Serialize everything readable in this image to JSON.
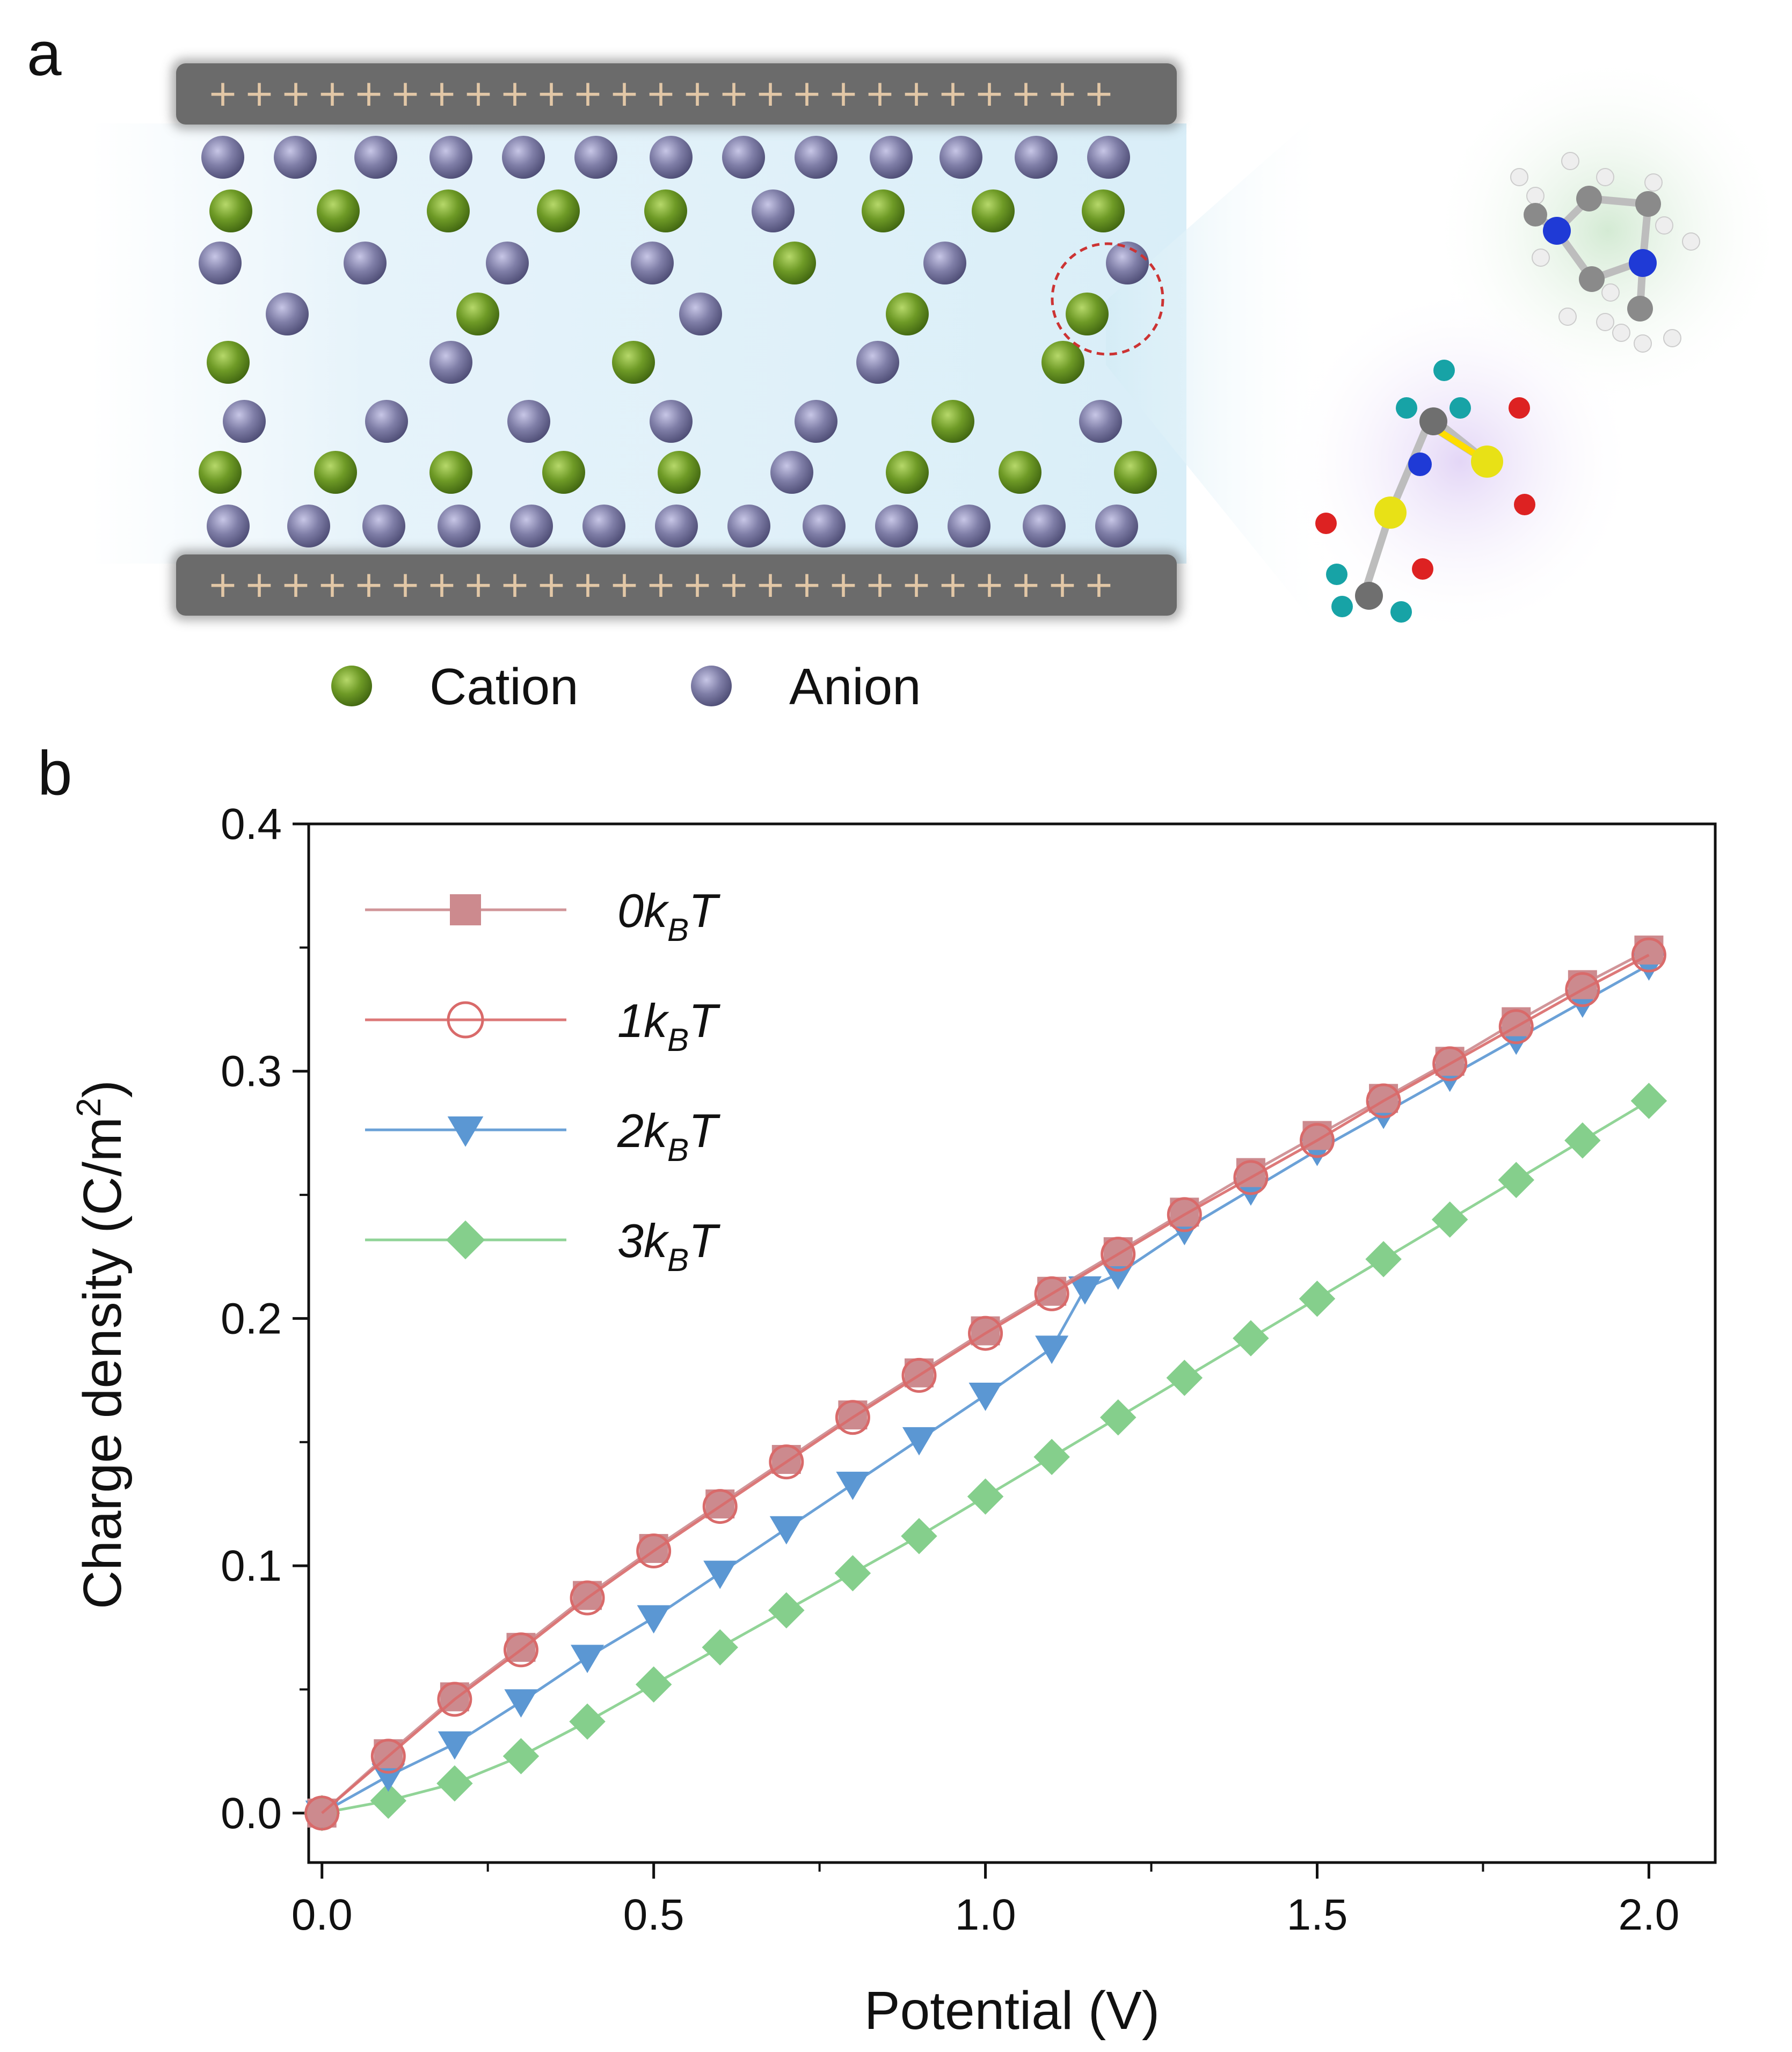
{
  "panel_a": {
    "label": "a",
    "legend": [
      {
        "name": "Cation",
        "color": "#6e9a26"
      },
      {
        "name": "Anion",
        "color": "#7f7ea7"
      }
    ],
    "electrode_sign": "+",
    "colors": {
      "electrode": "#6b6b6b",
      "electrolyte": "#dff0f8",
      "cation": "#6e9a26",
      "anion": "#7f7ea7",
      "highlight": "#cc3333"
    }
  },
  "panel_b": {
    "label": "b"
  },
  "chart_data": {
    "type": "line",
    "xlabel": "Potential (V)",
    "ylabel_text": "Charge density (C/m",
    "ylabel_sup": "2",
    "ylabel_close": ")",
    "xlim": [
      -0.02,
      2.1
    ],
    "ylim": [
      -0.02,
      0.4
    ],
    "x_ticks": [
      "0.0",
      "0.5",
      "1.0",
      "1.5",
      "2.0"
    ],
    "y_ticks": [
      "0.0",
      "0.1",
      "0.2",
      "0.3",
      "0.4"
    ],
    "x": [
      0.0,
      0.1,
      0.2,
      0.3,
      0.4,
      0.5,
      0.6,
      0.7,
      0.8,
      0.9,
      1.0,
      1.1,
      1.2,
      1.3,
      1.4,
      1.5,
      1.6,
      1.7,
      1.8,
      1.9,
      2.0
    ],
    "series": [
      {
        "name_num": "0",
        "marker": "square",
        "color": "#cc8a8e",
        "values": [
          0.0,
          0.024,
          0.047,
          0.067,
          0.088,
          0.107,
          0.125,
          0.143,
          0.161,
          0.178,
          0.195,
          0.211,
          0.227,
          0.243,
          0.259,
          0.274,
          0.289,
          0.304,
          0.32,
          0.335,
          0.349
        ]
      },
      {
        "name_num": "1",
        "marker": "open-circle",
        "color": "#d96a6a",
        "values": [
          0.0,
          0.023,
          0.046,
          0.066,
          0.087,
          0.106,
          0.124,
          0.142,
          0.16,
          0.177,
          0.194,
          0.21,
          0.226,
          0.242,
          0.257,
          0.272,
          0.288,
          0.303,
          0.318,
          0.333,
          0.347
        ]
      },
      {
        "name_num": "2",
        "marker": "triangle-down",
        "color": "#5b97d3",
        "values": [
          0.0,
          0.015,
          0.028,
          0.045,
          0.063,
          0.079,
          0.097,
          0.115,
          0.133,
          0.151,
          0.169,
          0.188,
          0.218,
          0.236,
          0.252,
          0.268,
          0.283,
          0.298,
          0.313,
          0.328,
          0.343
        ]
      },
      {
        "name_num": "3",
        "marker": "diamond",
        "color": "#85cf8c",
        "values": [
          0.0,
          0.005,
          0.012,
          0.023,
          0.037,
          0.052,
          0.067,
          0.082,
          0.097,
          0.112,
          0.128,
          0.144,
          0.16,
          0.176,
          0.192,
          0.208,
          0.224,
          0.24,
          0.256,
          0.272,
          0.288
        ]
      }
    ],
    "extra_points": [
      {
        "series_index": 2,
        "x": 1.15,
        "y": 0.212
      }
    ],
    "legend_units": {
      "k": "k",
      "sub": "B",
      "T": "T"
    },
    "legend_position": "top-left",
    "grid": false
  }
}
